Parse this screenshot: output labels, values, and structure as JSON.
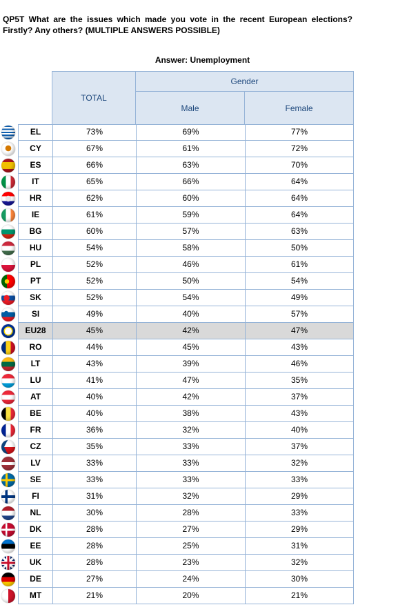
{
  "question": "QP5T  What are the issues which made you vote in the recent European elections? Firstly? Any others? (MULTIPLE ANSWERS POSSIBLE)",
  "answer_label": "Answer: Unemployment",
  "headers": {
    "total": "TOTAL",
    "gender": "Gender",
    "male": "Male",
    "female": "Female"
  },
  "rows": [
    {
      "country": "EL",
      "total": "73%",
      "male": "69%",
      "female": "77%",
      "flag": "greece-flag-icon"
    },
    {
      "country": "CY",
      "total": "67%",
      "male": "61%",
      "female": "72%",
      "flag": "cyprus-flag-icon"
    },
    {
      "country": "ES",
      "total": "66%",
      "male": "63%",
      "female": "70%",
      "flag": "spain-flag-icon"
    },
    {
      "country": "IT",
      "total": "65%",
      "male": "66%",
      "female": "64%",
      "flag": "italy-flag-icon"
    },
    {
      "country": "HR",
      "total": "62%",
      "male": "60%",
      "female": "64%",
      "flag": "croatia-flag-icon"
    },
    {
      "country": "IE",
      "total": "61%",
      "male": "59%",
      "female": "64%",
      "flag": "ireland-flag-icon"
    },
    {
      "country": "BG",
      "total": "60%",
      "male": "57%",
      "female": "63%",
      "flag": "bulgaria-flag-icon"
    },
    {
      "country": "HU",
      "total": "54%",
      "male": "58%",
      "female": "50%",
      "flag": "hungary-flag-icon"
    },
    {
      "country": "PL",
      "total": "52%",
      "male": "46%",
      "female": "61%",
      "flag": "poland-flag-icon"
    },
    {
      "country": "PT",
      "total": "52%",
      "male": "50%",
      "female": "54%",
      "flag": "portugal-flag-icon"
    },
    {
      "country": "SK",
      "total": "52%",
      "male": "54%",
      "female": "49%",
      "flag": "slovakia-flag-icon"
    },
    {
      "country": "SI",
      "total": "49%",
      "male": "40%",
      "female": "57%",
      "flag": "slovenia-flag-icon"
    },
    {
      "country": "EU28",
      "total": "45%",
      "male": "42%",
      "female": "47%",
      "flag": "eu-flag-icon",
      "highlight": true
    },
    {
      "country": "RO",
      "total": "44%",
      "male": "45%",
      "female": "43%",
      "flag": "romania-flag-icon"
    },
    {
      "country": "LT",
      "total": "43%",
      "male": "39%",
      "female": "46%",
      "flag": "lithuania-flag-icon"
    },
    {
      "country": "LU",
      "total": "41%",
      "male": "47%",
      "female": "35%",
      "flag": "luxembourg-flag-icon"
    },
    {
      "country": "AT",
      "total": "40%",
      "male": "42%",
      "female": "37%",
      "flag": "austria-flag-icon"
    },
    {
      "country": "BE",
      "total": "40%",
      "male": "38%",
      "female": "43%",
      "flag": "belgium-flag-icon"
    },
    {
      "country": "FR",
      "total": "36%",
      "male": "32%",
      "female": "40%",
      "flag": "france-flag-icon"
    },
    {
      "country": "CZ",
      "total": "35%",
      "male": "33%",
      "female": "37%",
      "flag": "czechia-flag-icon"
    },
    {
      "country": "LV",
      "total": "33%",
      "male": "33%",
      "female": "32%",
      "flag": "latvia-flag-icon"
    },
    {
      "country": "SE",
      "total": "33%",
      "male": "33%",
      "female": "33%",
      "flag": "sweden-flag-icon"
    },
    {
      "country": "FI",
      "total": "31%",
      "male": "32%",
      "female": "29%",
      "flag": "finland-flag-icon"
    },
    {
      "country": "NL",
      "total": "30%",
      "male": "28%",
      "female": "33%",
      "flag": "netherlands-flag-icon"
    },
    {
      "country": "DK",
      "total": "28%",
      "male": "27%",
      "female": "29%",
      "flag": "denmark-flag-icon"
    },
    {
      "country": "EE",
      "total": "28%",
      "male": "25%",
      "female": "31%",
      "flag": "estonia-flag-icon"
    },
    {
      "country": "UK",
      "total": "28%",
      "male": "23%",
      "female": "32%",
      "flag": "uk-flag-icon"
    },
    {
      "country": "DE",
      "total": "27%",
      "male": "24%",
      "female": "30%",
      "flag": "germany-flag-icon"
    },
    {
      "country": "MT",
      "total": "21%",
      "male": "20%",
      "female": "21%",
      "flag": "malta-flag-icon"
    }
  ],
  "colors": {
    "header_bg": "#dce6f2",
    "border": "#95b3d7",
    "header_text": "#1f497d",
    "highlight_bg": "#d9d9d9"
  }
}
